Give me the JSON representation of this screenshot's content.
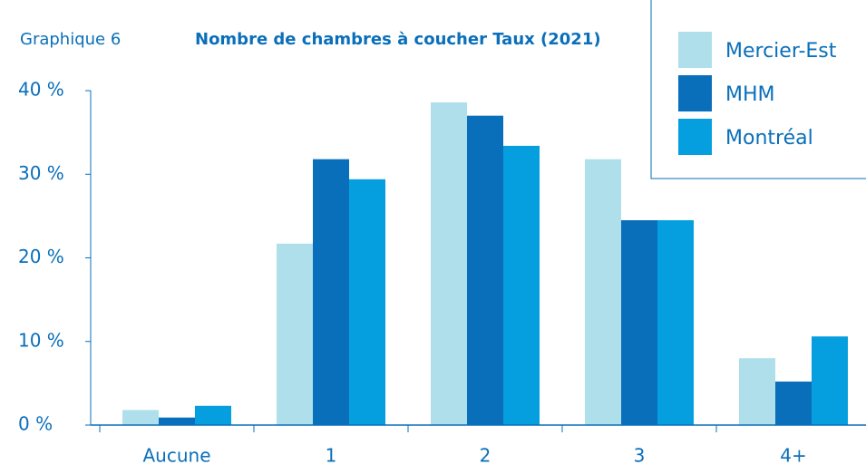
{
  "chart_data": {
    "type": "bar",
    "label": "Graphique 6",
    "title": "Nombre de chambres à coucher Taux (2021)",
    "categories": [
      "Aucune",
      "1",
      "2",
      "3",
      "4+"
    ],
    "series": [
      {
        "name": "Mercier-Est",
        "color": "#b0dfec",
        "values": [
          1.8,
          21.7,
          38.6,
          31.8,
          8.0
        ]
      },
      {
        "name": "MHM",
        "color": "#0a6fba",
        "values": [
          0.9,
          31.8,
          37.0,
          24.5,
          5.2
        ]
      },
      {
        "name": "Montréal",
        "color": "#059fdf",
        "values": [
          2.3,
          29.4,
          33.4,
          24.5,
          10.6
        ]
      }
    ],
    "ylim": [
      0,
      40
    ],
    "yticks": [
      {
        "value": 0,
        "label": "0 %"
      },
      {
        "value": 10,
        "label": "10 %"
      },
      {
        "value": 20,
        "label": "20 %"
      },
      {
        "value": 30,
        "label": "30 %"
      },
      {
        "value": 40,
        "label": "40 %"
      }
    ],
    "grid": false,
    "legend": "upper right"
  }
}
